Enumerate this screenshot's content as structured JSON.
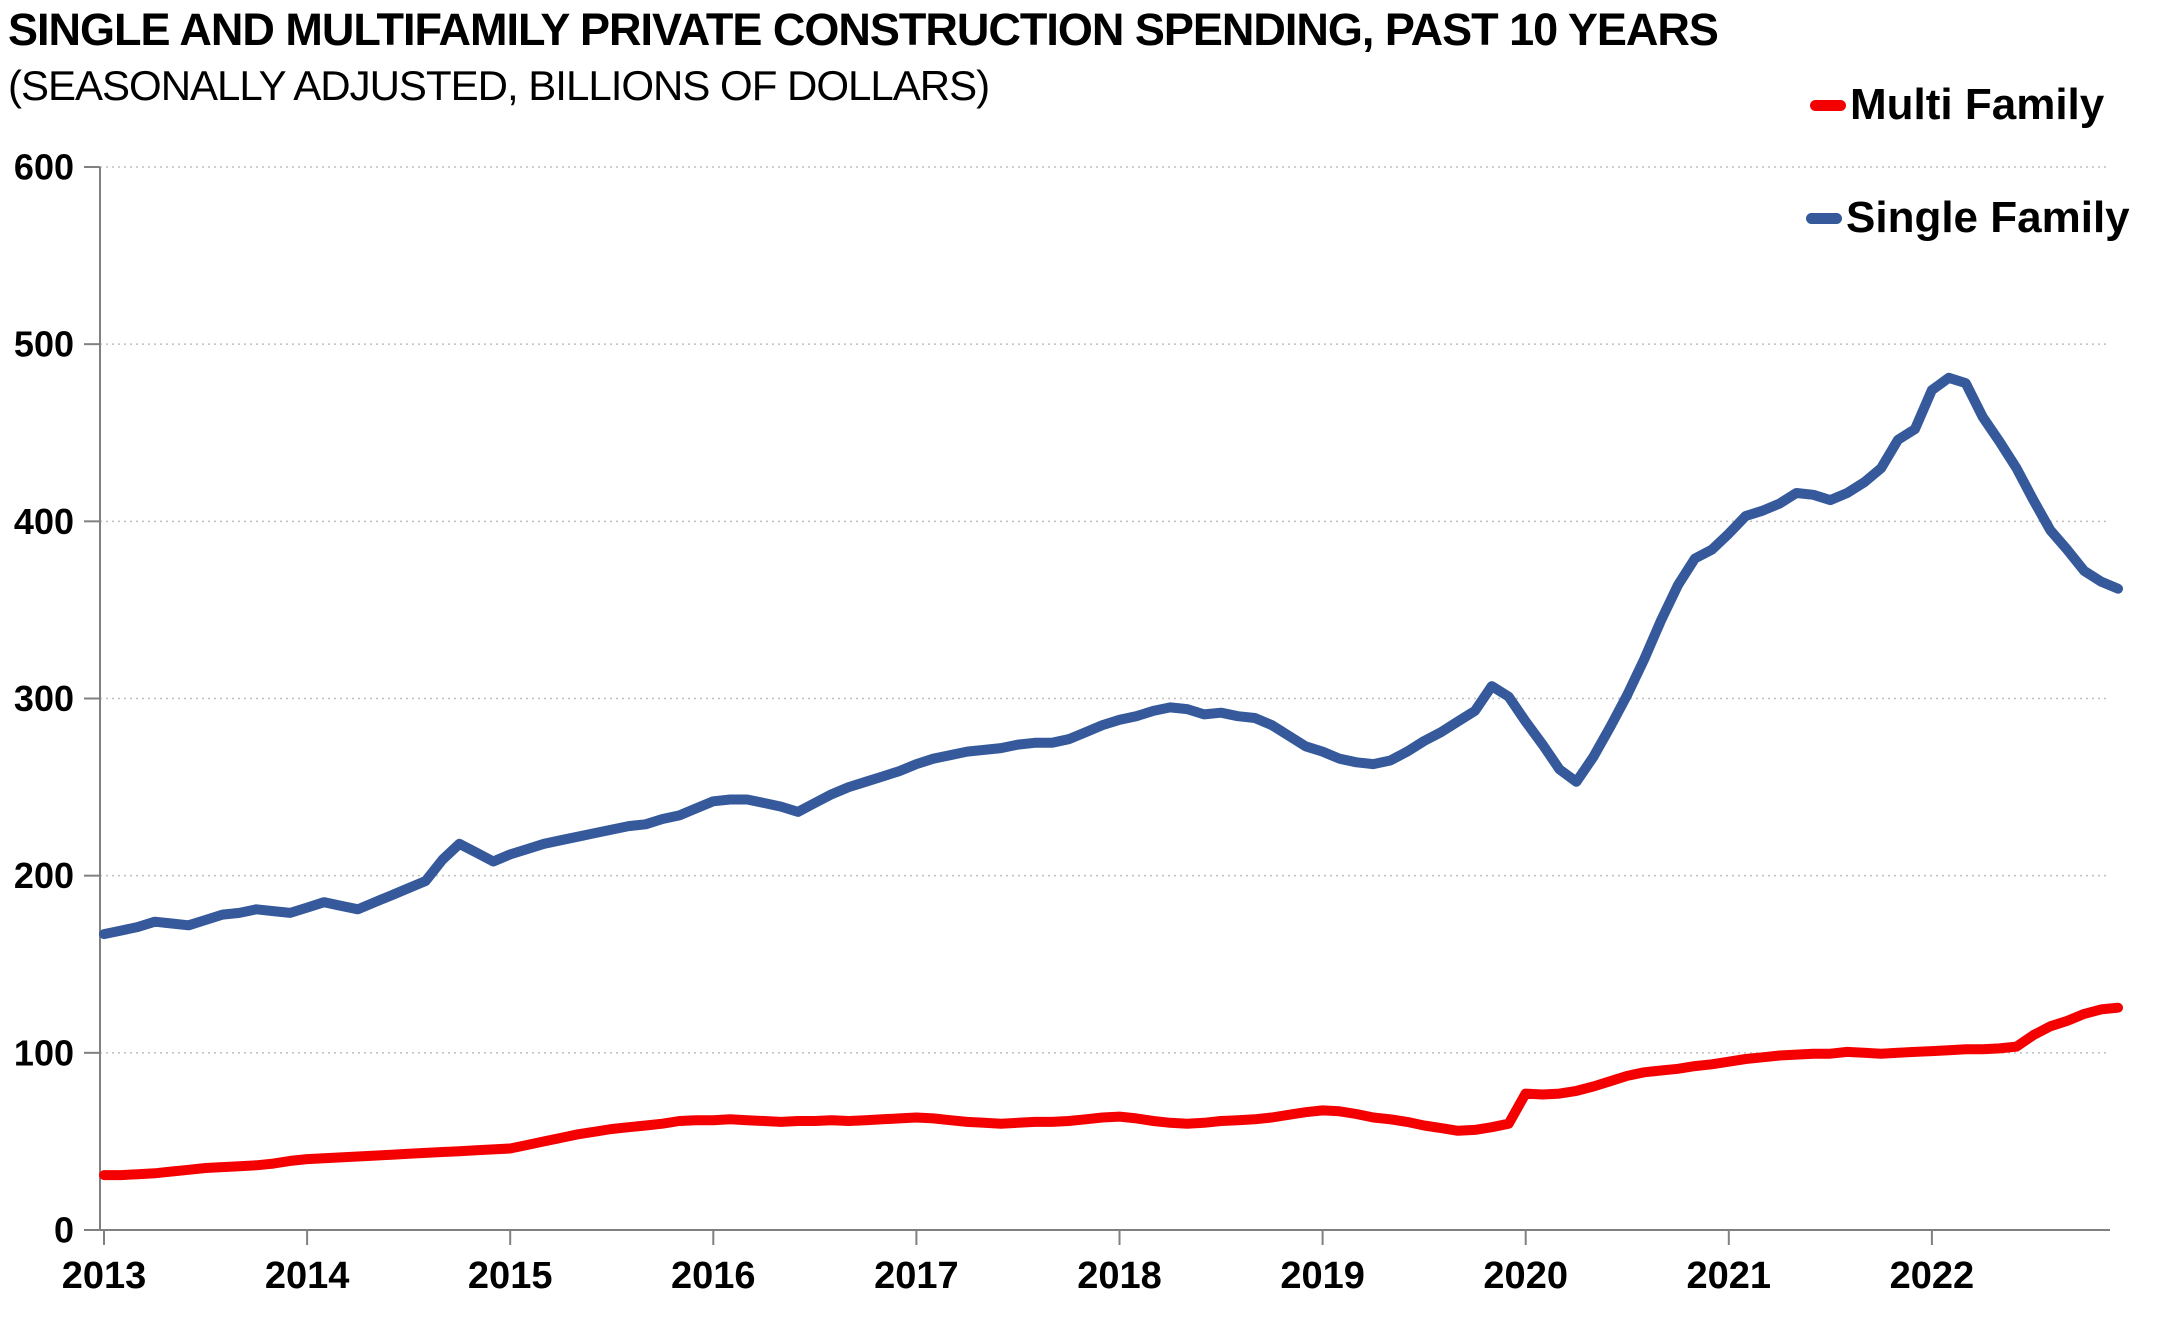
{
  "header": {
    "title": "SINGLE AND MULTIFAMILY PRIVATE CONSTRUCTION SPENDING, PAST 10 YEARS",
    "subtitle": "(SEASONALLY ADJUSTED, BILLIONS OF DOLLARS)"
  },
  "chart_data": {
    "type": "line",
    "title": "SINGLE AND MULTIFAMILY PRIVATE CONSTRUCTION SPENDING, PAST 10 YEARS",
    "subtitle": "(SEASONALLY ADJUSTED, BILLIONS OF DOLLARS)",
    "x_unit": "month",
    "x_start": "2013-01",
    "x_end": "2022-12",
    "x_tick_labels": [
      "2013",
      "2014",
      "2015",
      "2016",
      "2017",
      "2018",
      "2019",
      "2020",
      "2021",
      "2022"
    ],
    "ylim": [
      0,
      600
    ],
    "y_ticks": [
      0,
      100,
      200,
      300,
      400,
      500,
      600
    ],
    "grid": "horizontal-dotted",
    "legend_position": "top-right",
    "series": [
      {
        "name": "Multi Family",
        "color": "#F40000",
        "values": [
          31,
          31,
          31.5,
          32,
          33,
          34,
          35,
          35.5,
          36,
          36.5,
          37.5,
          39,
          40,
          40.5,
          41,
          41.5,
          42,
          42.5,
          43,
          43.5,
          44,
          44.5,
          45,
          45.5,
          46,
          48,
          50,
          52,
          54,
          55.5,
          57,
          58,
          59,
          60,
          61.5,
          62,
          62,
          62.5,
          62,
          61.5,
          61,
          61.5,
          61.5,
          62,
          61.5,
          62,
          62.5,
          63,
          63.5,
          63,
          62,
          61,
          60.5,
          60,
          60.5,
          61,
          61,
          61.5,
          62.5,
          63.5,
          64,
          63,
          61.5,
          60.5,
          60,
          60.5,
          61.5,
          62,
          62.5,
          63.5,
          65,
          66.5,
          67.5,
          67,
          65.5,
          63.5,
          62.5,
          61,
          59,
          57.5,
          56,
          56.5,
          58,
          60,
          77,
          76.5,
          77,
          78.5,
          81,
          84,
          87,
          89,
          90,
          91,
          92.5,
          93.5,
          95,
          96.5,
          97.5,
          98.5,
          99,
          99.5,
          99.5,
          100.5,
          100,
          99.5,
          100,
          100.5,
          101,
          101.5,
          102,
          102,
          102.5,
          103.5,
          110,
          115,
          118,
          122,
          124.5,
          125.5
        ]
      },
      {
        "name": "Single Family",
        "color": "#35599A",
        "values": [
          167,
          169,
          171,
          174,
          173,
          172,
          175,
          178,
          179,
          181,
          180,
          179,
          182,
          185,
          183,
          181,
          185,
          189,
          193,
          197,
          209,
          218,
          213,
          208,
          212,
          215,
          218,
          220,
          222,
          224,
          226,
          228,
          229,
          232,
          234,
          238,
          242,
          243,
          243,
          241,
          239,
          236,
          241,
          246,
          250,
          253,
          256,
          259,
          263,
          266,
          268,
          270,
          271,
          272,
          274,
          275,
          275,
          277,
          281,
          285,
          288,
          290,
          293,
          295,
          294,
          291,
          292,
          290,
          289,
          285,
          279,
          273,
          270,
          266,
          264,
          263,
          265,
          270,
          276,
          281,
          287,
          293,
          307,
          301,
          287,
          274,
          260,
          253,
          267,
          284,
          302,
          322,
          344,
          364,
          379,
          384,
          393,
          403,
          406,
          410,
          416,
          415,
          412,
          416,
          422,
          430,
          446,
          452,
          474,
          481,
          478,
          459,
          445,
          430,
          412,
          395,
          384,
          372,
          366,
          362
        ]
      }
    ]
  },
  "colors": {
    "background": "#FFFFFF",
    "grid": "#BFBFBF",
    "axis": "#808080",
    "text": "#000000"
  }
}
